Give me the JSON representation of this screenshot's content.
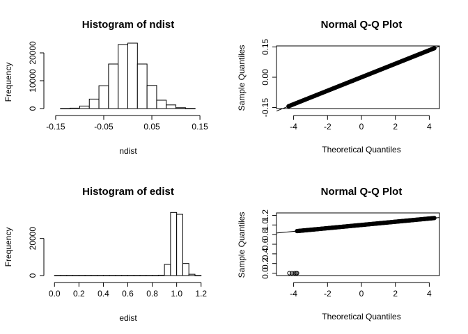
{
  "chart_data": [
    {
      "type": "histogram",
      "title": "Histogram of ndist",
      "xlabel": "ndist",
      "ylabel": "Frequency",
      "xticks": [
        "-0.15",
        "-0.05",
        "0.05",
        "0.15"
      ],
      "xtick_values": [
        -0.15,
        -0.05,
        0.05,
        0.15
      ],
      "yticks": [
        "0",
        "10000",
        "20000"
      ],
      "ytick_values": [
        0,
        10000,
        20000
      ],
      "xlim": [
        -0.16,
        0.16
      ],
      "ylim": [
        0,
        24000
      ],
      "bins": [
        {
          "x0": -0.14,
          "x1": -0.12,
          "count": 10
        },
        {
          "x0": -0.12,
          "x1": -0.1,
          "count": 150
        },
        {
          "x0": -0.1,
          "x1": -0.08,
          "count": 900
        },
        {
          "x0": -0.08,
          "x1": -0.06,
          "count": 3400
        },
        {
          "x0": -0.06,
          "x1": -0.04,
          "count": 8200
        },
        {
          "x0": -0.04,
          "x1": -0.02,
          "count": 16000
        },
        {
          "x0": -0.02,
          "x1": 0.0,
          "count": 23000
        },
        {
          "x0": 0.0,
          "x1": 0.02,
          "count": 23500
        },
        {
          "x0": 0.02,
          "x1": 0.04,
          "count": 16000
        },
        {
          "x0": 0.04,
          "x1": 0.06,
          "count": 8300
        },
        {
          "x0": 0.06,
          "x1": 0.08,
          "count": 3000
        },
        {
          "x0": 0.08,
          "x1": 0.1,
          "count": 1300
        },
        {
          "x0": 0.1,
          "x1": 0.12,
          "count": 300
        },
        {
          "x0": 0.12,
          "x1": 0.14,
          "count": 40
        }
      ]
    },
    {
      "type": "scatter",
      "title": "Normal Q-Q Plot",
      "xlabel": "Theoretical Quantiles",
      "ylabel": "Sample Quantiles",
      "xticks": [
        "-4",
        "-2",
        "0",
        "2",
        "4"
      ],
      "xtick_values": [
        -4,
        -2,
        0,
        2,
        4
      ],
      "yticks": [
        "-0.15",
        "0.00",
        "0.15"
      ],
      "ytick_values": [
        -0.15,
        0.0,
        0.15
      ],
      "xlim": [
        -4.6,
        4.6
      ],
      "ylim": [
        -0.155,
        0.155
      ],
      "points": {
        "x_min": -4.3,
        "x_max": 4.3,
        "intercept": 0.0,
        "slope": 0.0334
      },
      "reference_line": {
        "intercept": 0.0,
        "slope": 0.0334
      }
    },
    {
      "type": "histogram",
      "title": "Histogram of edist",
      "xlabel": "edist",
      "ylabel": "Frequency",
      "xticks": [
        "0.0",
        "0.2",
        "0.4",
        "0.6",
        "0.8",
        "1.0",
        "1.2"
      ],
      "xtick_values": [
        0.0,
        0.2,
        0.4,
        0.6,
        0.8,
        1.0,
        1.2
      ],
      "yticks": [
        "0",
        "20000"
      ],
      "ytick_values": [
        0,
        20000
      ],
      "xlim": [
        -0.03,
        1.23
      ],
      "ylim": [
        0,
        36000
      ],
      "bins": [
        {
          "x0": 0.0,
          "x1": 0.05,
          "count": 80
        },
        {
          "x0": 0.05,
          "x1": 0.1,
          "count": 80
        },
        {
          "x0": 0.1,
          "x1": 0.15,
          "count": 80
        },
        {
          "x0": 0.15,
          "x1": 0.2,
          "count": 80
        },
        {
          "x0": 0.2,
          "x1": 0.25,
          "count": 80
        },
        {
          "x0": 0.25,
          "x1": 0.3,
          "count": 80
        },
        {
          "x0": 0.3,
          "x1": 0.35,
          "count": 80
        },
        {
          "x0": 0.35,
          "x1": 0.4,
          "count": 80
        },
        {
          "x0": 0.4,
          "x1": 0.45,
          "count": 80
        },
        {
          "x0": 0.45,
          "x1": 0.5,
          "count": 80
        },
        {
          "x0": 0.5,
          "x1": 0.55,
          "count": 80
        },
        {
          "x0": 0.55,
          "x1": 0.6,
          "count": 80
        },
        {
          "x0": 0.6,
          "x1": 0.65,
          "count": 80
        },
        {
          "x0": 0.65,
          "x1": 0.7,
          "count": 80
        },
        {
          "x0": 0.7,
          "x1": 0.75,
          "count": 80
        },
        {
          "x0": 0.75,
          "x1": 0.8,
          "count": 80
        },
        {
          "x0": 0.8,
          "x1": 0.85,
          "count": 80
        },
        {
          "x0": 0.85,
          "x1": 0.9,
          "count": 200
        },
        {
          "x0": 0.9,
          "x1": 0.95,
          "count": 6000
        },
        {
          "x0": 0.95,
          "x1": 1.0,
          "count": 34000
        },
        {
          "x0": 1.0,
          "x1": 1.05,
          "count": 33000
        },
        {
          "x0": 1.05,
          "x1": 1.1,
          "count": 6500
        },
        {
          "x0": 1.1,
          "x1": 1.15,
          "count": 700
        },
        {
          "x0": 1.15,
          "x1": 1.2,
          "count": 50
        }
      ]
    },
    {
      "type": "scatter",
      "title": "Normal Q-Q Plot",
      "xlabel": "Theoretical Quantiles",
      "ylabel": "Sample Quantiles",
      "xticks": [
        "-4",
        "-2",
        "0",
        "2",
        "4"
      ],
      "xtick_values": [
        -4,
        -2,
        0,
        2,
        4
      ],
      "yticks": [
        "0.0",
        "0.2",
        "0.4",
        "0.6",
        "0.8",
        "1.0",
        "1.2"
      ],
      "ytick_values": [
        0.0,
        0.2,
        0.4,
        0.6,
        0.8,
        1.0,
        1.2
      ],
      "xlim": [
        -4.6,
        4.6
      ],
      "ylim": [
        -0.05,
        1.25
      ],
      "points": {
        "x_min": -3.8,
        "x_max": 4.3,
        "intercept": 1.0,
        "slope": 0.0334
      },
      "outliers": [
        {
          "x": -4.25,
          "y": 0.0
        },
        {
          "x": -4.1,
          "y": 0.0
        },
        {
          "x": -3.95,
          "y": 0.0
        },
        {
          "x": -3.85,
          "y": 0.0
        },
        {
          "x": -3.8,
          "y": 0.0
        }
      ],
      "reference_line": {
        "intercept": 1.0,
        "slope": 0.0334
      }
    }
  ]
}
